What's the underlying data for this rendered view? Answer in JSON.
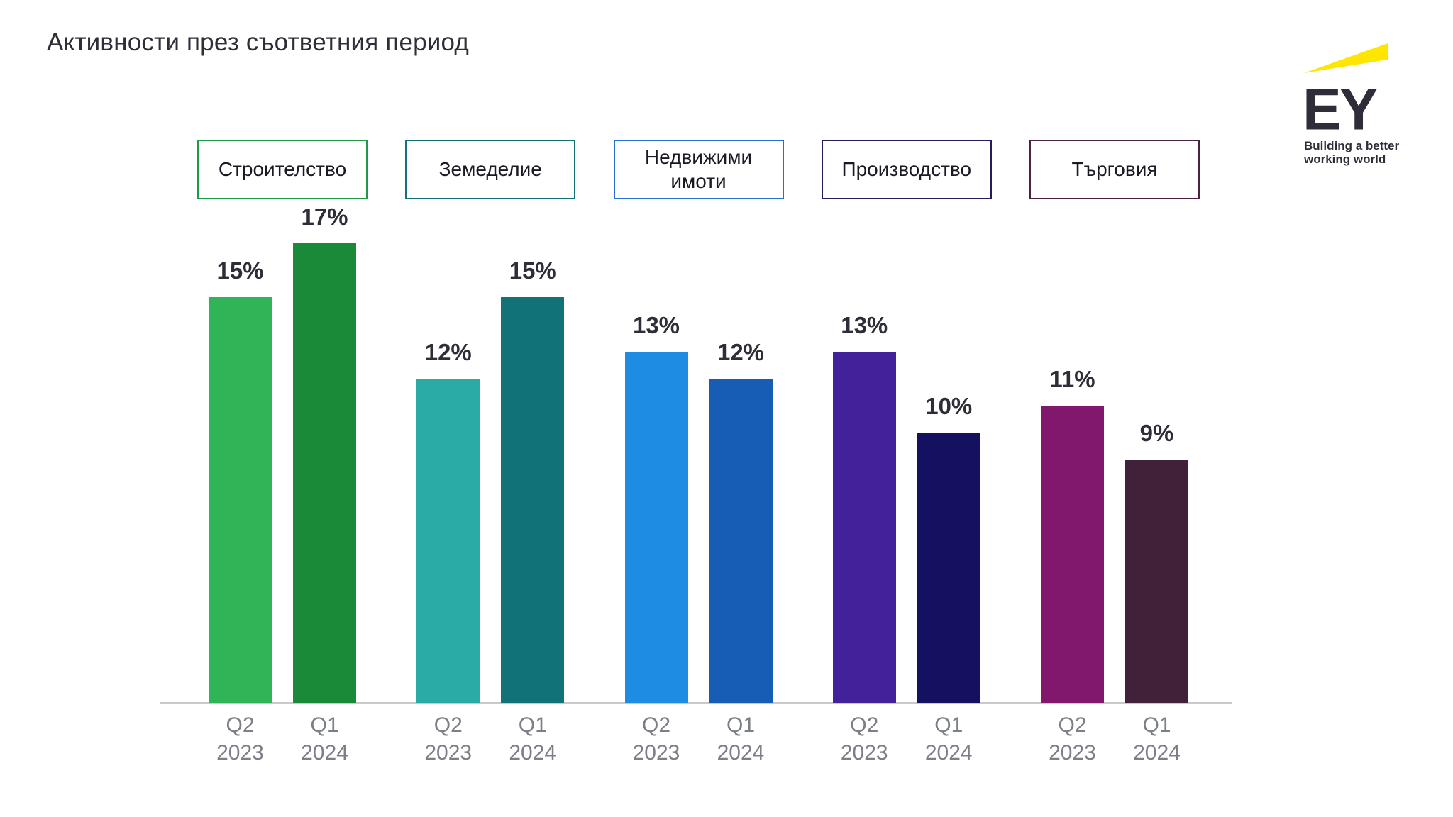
{
  "title": "Активности през съответния период",
  "logo": {
    "name": "EY",
    "tagline": [
      "Building a better",
      "working world"
    ],
    "beam_color": "#FFE600",
    "text_color": "#2E2E38"
  },
  "chart_data": {
    "type": "bar",
    "title": "Активности през съответния период",
    "unit": "%",
    "ylim": [
      0,
      18
    ],
    "grid": false,
    "legend_position": "top-boxes",
    "axis_line_color": "#C9C9CE",
    "tick_label_color": "#7C7F88",
    "value_label_color": "#2E2E38",
    "categories": [
      "Q2 2023",
      "Q1 2024"
    ],
    "groups": [
      {
        "label": "Строителство",
        "box_border_color": "#1F9A44",
        "bars": [
          {
            "period": "Q2 2023",
            "value": 15,
            "label": "15%",
            "color": "#2FB457"
          },
          {
            "period": "Q1 2024",
            "value": 17,
            "label": "17%",
            "color": "#1A8A38"
          }
        ]
      },
      {
        "label": "Земеделие",
        "box_border_color": "#117378",
        "bars": [
          {
            "period": "Q2 2023",
            "value": 12,
            "label": "12%",
            "color": "#2BABA6"
          },
          {
            "period": "Q1 2024",
            "value": 15,
            "label": "15%",
            "color": "#117378"
          }
        ]
      },
      {
        "label": "Недвижими имоти",
        "box_border_color": "#2173CE",
        "bars": [
          {
            "period": "Q2 2023",
            "value": 13,
            "label": "13%",
            "color": "#1E8CE3"
          },
          {
            "period": "Q1 2024",
            "value": 12,
            "label": "12%",
            "color": "#185DB5"
          }
        ]
      },
      {
        "label": "Производство",
        "box_border_color": "#221D5E",
        "bars": [
          {
            "period": "Q2 2023",
            "value": 13,
            "label": "13%",
            "color": "#42219B"
          },
          {
            "period": "Q1 2024",
            "value": 10,
            "label": "10%",
            "color": "#141161"
          }
        ]
      },
      {
        "label": "Търговия",
        "box_border_color": "#4A2140",
        "bars": [
          {
            "period": "Q2 2023",
            "value": 11,
            "label": "11%",
            "color": "#82186E"
          },
          {
            "period": "Q1 2024",
            "value": 9,
            "label": "9%",
            "color": "#41203A"
          }
        ]
      }
    ]
  }
}
